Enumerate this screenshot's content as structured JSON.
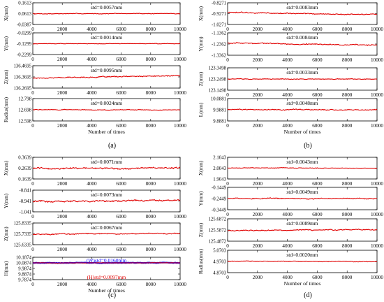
{
  "chart_data": [
    {
      "type": "line",
      "label": "(a)",
      "xlabel": "Number of times",
      "xticks": [
        "0",
        "2000",
        "4000",
        "6000",
        "8000",
        "10000"
      ],
      "xlim": [
        0,
        10000
      ],
      "color": "#e00000",
      "panels": [
        {
          "ylabel": "X(mm)",
          "yticks": [
            "0.1613",
            "0.0613",
            "-0.0387"
          ],
          "ylim": [
            -0.0387,
            0.1613
          ],
          "mean": 0.0613,
          "trend": 0.002,
          "noise": 0.004,
          "annotations": [
            {
              "text": "std=0.0057mm"
            }
          ]
        },
        {
          "ylabel": "Y(mm)",
          "yticks": [
            "-0.0299",
            "-0.1299",
            "-0.2299"
          ],
          "ylim": [
            -0.2299,
            -0.0299
          ],
          "mean": -0.1299,
          "trend": 0.0,
          "noise": 0.003,
          "annotations": [
            {
              "text": "std=0.0014mm"
            }
          ]
        },
        {
          "ylabel": "Z(mm)",
          "yticks": [
            "136.4695",
            "136.3695",
            "136.2695"
          ],
          "ylim": [
            136.2695,
            136.4695
          ],
          "mean": 136.3695,
          "trend": 0.02,
          "noise": 0.006,
          "annotations": [
            {
              "text": "std=0.0095mm"
            }
          ]
        },
        {
          "ylabel": "Radius(mm)",
          "yticks": [
            "12.798",
            "12.698",
            "12.598"
          ],
          "ylim": [
            12.598,
            12.798
          ],
          "mean": 12.698,
          "trend": -0.002,
          "noise": 0.004,
          "annotations": [
            {
              "text": "std=0.0024mm"
            }
          ]
        }
      ]
    },
    {
      "type": "line",
      "label": "(b)",
      "xlabel": "Number of times",
      "xticks": [
        "0",
        "2000",
        "4000",
        "6000",
        "8000",
        "10000"
      ],
      "xlim": [
        0,
        10000
      ],
      "color": "#e00000",
      "panels": [
        {
          "ylabel": "X(mm)",
          "yticks": [
            "-0.8271",
            "-0.9271",
            "-1.0271"
          ],
          "ylim": [
            -1.0271,
            -0.8271
          ],
          "mean": -0.9271,
          "trend": -0.02,
          "noise": 0.006,
          "annotations": [
            {
              "text": "std=0.0083mm"
            }
          ]
        },
        {
          "ylabel": "Y(mm)",
          "yticks": [
            "-1.1362",
            "-1.2362",
            "-1.3362"
          ],
          "ylim": [
            -1.3362,
            -1.1362
          ],
          "mean": -1.2362,
          "trend": -0.02,
          "noise": 0.006,
          "annotations": [
            {
              "text": "std=0.0084mm"
            }
          ]
        },
        {
          "ylabel": "Z(mm)",
          "yticks": [
            "123.3498",
            "123.2498",
            "123.1498"
          ],
          "ylim": [
            123.1498,
            123.3498
          ],
          "mean": 123.2498,
          "trend": 0.0,
          "noise": 0.004,
          "annotations": [
            {
              "text": "std=0.0033mm"
            }
          ]
        },
        {
          "ylabel": "L(mm)",
          "yticks": [
            "10.0881",
            "9.9881",
            "9.8881"
          ],
          "ylim": [
            9.8881,
            10.0881
          ],
          "mean": 9.9881,
          "trend": 0.0,
          "noise": 0.006,
          "annotations": [
            {
              "text": "std=0.0048mm"
            }
          ]
        }
      ]
    },
    {
      "type": "line",
      "label": "(c)",
      "xlabel": "Number of times",
      "xticks": [
        "0",
        "2000",
        "4000",
        "6000",
        "8000",
        "10000"
      ],
      "xlim": [
        0,
        10000
      ],
      "color": "#e00000",
      "panels": [
        {
          "ylabel": "X(mm)",
          "yticks": [
            "0.3639",
            "0.2639",
            "0.1639"
          ],
          "ylim": [
            0.1639,
            0.3639
          ],
          "mean": 0.2639,
          "trend": 0.0,
          "noise": 0.009,
          "annotations": [
            {
              "text": "std=0.0071mm"
            }
          ]
        },
        {
          "ylabel": "Y(mm)",
          "yticks": [
            "-0.841",
            "-0.941",
            "-1.041"
          ],
          "ylim": [
            -1.041,
            -0.841
          ],
          "mean": -0.941,
          "trend": 0.01,
          "noise": 0.01,
          "annotations": [
            {
              "text": "std=0.0073mm"
            }
          ]
        },
        {
          "ylabel": "Z(mm)",
          "yticks": [
            "125.8335",
            "125.7335",
            "125.6335"
          ],
          "ylim": [
            125.6335,
            125.8335
          ],
          "mean": 125.7335,
          "trend": 0.005,
          "noise": 0.006,
          "annotations": [
            {
              "text": "std=0.0067mm"
            }
          ]
        },
        {
          "ylabel": "H(mm)",
          "yticks": [
            "10.1874",
            "10.0874",
            "9.9874",
            "9.8874",
            "9.7874"
          ],
          "ylim": [
            9.7874,
            10.1874
          ],
          "mean": 10.0874,
          "trend": 0.0,
          "noise": 0.004,
          "overlay": {
            "color": "#0000ff",
            "mean": 10.0874,
            "noise": 0.006
          },
          "annotations": [
            {
              "text": "(W)std=0.0160mm",
              "color": "#0000ff"
            },
            {
              "text": "(H)std=0.0097mm",
              "color": "#e00000"
            }
          ]
        }
      ]
    },
    {
      "type": "line",
      "label": "(d)",
      "xlabel": "Number of times",
      "xticks": [
        "0",
        "2000",
        "4000",
        "6000",
        "8000",
        "10000"
      ],
      "xlim": [
        0,
        10000
      ],
      "color": "#e00000",
      "panels": [
        {
          "ylabel": "X(mm)",
          "yticks": [
            "2.1043",
            "2.0043",
            "1.9043"
          ],
          "ylim": [
            1.9043,
            2.1043
          ],
          "mean": 2.0043,
          "trend": -0.005,
          "noise": 0.004,
          "annotations": [
            {
              "text": "std=0.0043mm"
            }
          ]
        },
        {
          "ylabel": "Y(mm)",
          "yticks": [
            "-0.1449",
            "-0.2449",
            "-0.3449"
          ],
          "ylim": [
            -0.3449,
            -0.1449
          ],
          "mean": -0.2449,
          "trend": 0.0,
          "noise": 0.006,
          "annotations": [
            {
              "text": "std=0.0049mm"
            }
          ]
        },
        {
          "ylabel": "Z(mm)",
          "yticks": [
            "125.6872",
            "125.5872",
            "125.4872"
          ],
          "ylim": [
            125.4872,
            125.6872
          ],
          "mean": 125.5872,
          "trend": 0.01,
          "noise": 0.006,
          "annotations": [
            {
              "text": "std=0.0089mm"
            }
          ]
        },
        {
          "ylabel": "Radius(mm)",
          "yticks": [
            "5.0703",
            "4.9703",
            "4.8703"
          ],
          "ylim": [
            4.8703,
            5.0703
          ],
          "mean": 4.9703,
          "trend": -0.005,
          "noise": 0.004,
          "annotations": [
            {
              "text": "std=0.0020mm"
            }
          ]
        }
      ]
    }
  ]
}
